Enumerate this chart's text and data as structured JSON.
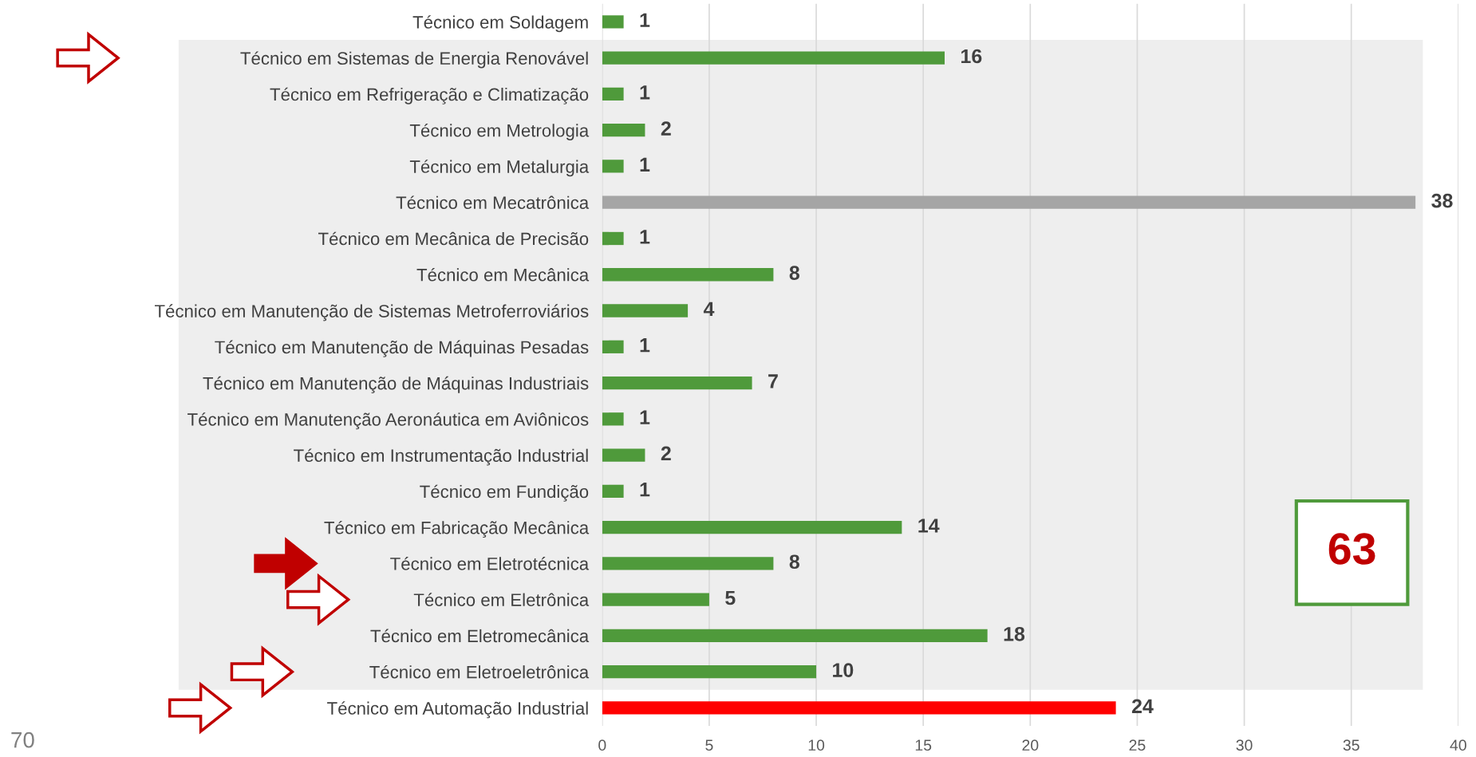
{
  "chart_data": {
    "type": "bar",
    "orientation": "horizontal",
    "categories": [
      "Técnico em Soldagem",
      "Técnico em Sistemas de Energia Renovável",
      "Técnico em Refrigeração e Climatização",
      "Técnico em Metrologia",
      "Técnico em Metalurgia",
      "Técnico em Mecatrônica",
      "Técnico em Mecânica de Precisão",
      "Técnico em Mecânica",
      "Técnico em Manutenção de Sistemas Metroferroviários",
      "Técnico em Manutenção de Máquinas Pesadas",
      "Técnico em Manutenção de Máquinas Industriais",
      "Técnico em Manutenção Aeronáutica em Aviônicos",
      "Técnico em Instrumentação Industrial",
      "Técnico em Fundição",
      "Técnico em Fabricação Mecânica",
      "Técnico em Eletrotécnica",
      "Técnico em Eletrônica",
      "Técnico em Eletromecânica",
      "Técnico em Eletroeletrônica",
      "Técnico em Automação Industrial"
    ],
    "values": [
      1,
      16,
      1,
      2,
      1,
      38,
      1,
      8,
      4,
      1,
      7,
      1,
      2,
      1,
      14,
      8,
      5,
      18,
      10,
      24
    ],
    "colors": [
      "#4f9a3b",
      "#4f9a3b",
      "#4f9a3b",
      "#4f9a3b",
      "#4f9a3b",
      "#a5a5a5",
      "#4f9a3b",
      "#4f9a3b",
      "#4f9a3b",
      "#4f9a3b",
      "#4f9a3b",
      "#4f9a3b",
      "#4f9a3b",
      "#4f9a3b",
      "#4f9a3b",
      "#4f9a3b",
      "#4f9a3b",
      "#4f9a3b",
      "#4f9a3b",
      "#ff0000"
    ],
    "data_labels": true,
    "xlim": [
      0,
      40
    ],
    "xticks": [
      0,
      5,
      10,
      15,
      20,
      25,
      30,
      35,
      40
    ],
    "grid": "x",
    "annotations": [
      "63",
      "70"
    ]
  }
}
